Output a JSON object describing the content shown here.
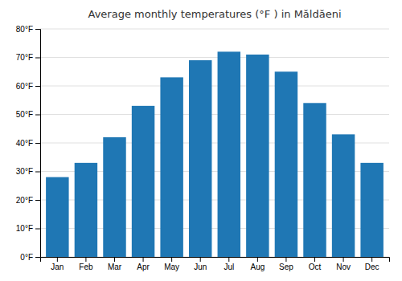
{
  "chart_data": {
    "type": "bar",
    "title": "Average monthly temperatures (°F ) in Măldăeni",
    "categories": [
      "Jan",
      "Feb",
      "Mar",
      "Apr",
      "May",
      "Jun",
      "Jul",
      "Aug",
      "Sep",
      "Oct",
      "Nov",
      "Dec"
    ],
    "values": [
      28,
      33,
      42,
      53,
      63,
      69,
      72,
      71,
      65,
      54,
      43,
      33
    ],
    "ylim": [
      0,
      80
    ],
    "yticks": [
      {
        "value": 0,
        "label": "0°F"
      },
      {
        "value": 10,
        "label": "10°F"
      },
      {
        "value": 20,
        "label": "20°F"
      },
      {
        "value": 30,
        "label": "30°F"
      },
      {
        "value": 40,
        "label": "40°F"
      },
      {
        "value": 50,
        "label": "50°F"
      },
      {
        "value": 60,
        "label": "60°F"
      },
      {
        "value": 70,
        "label": "70°F"
      },
      {
        "value": 80,
        "label": "80°F"
      }
    ],
    "grid": true
  }
}
